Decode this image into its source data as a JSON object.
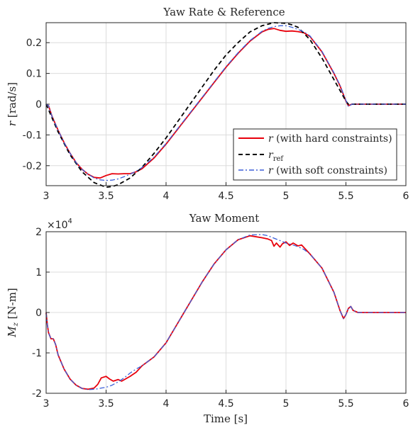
{
  "chart_data": [
    {
      "type": "line",
      "title": "Yaw Rate & Reference",
      "xlabel": "",
      "ylabel": "r [rad/s]",
      "xlim": [
        3,
        6
      ],
      "ylim": [
        -0.265,
        0.265
      ],
      "xticks": [
        "3",
        "3.5",
        "4",
        "4.5",
        "5",
        "5.5",
        "6"
      ],
      "yticks": [
        "-0.2",
        "-0.1",
        "0",
        "0.1",
        "0.2"
      ],
      "grid": true,
      "legend_position": "bottom-right",
      "series": [
        {
          "name": "r (with hard constraints)",
          "color": "#e8000b",
          "style": "solid",
          "x": [
            3.0,
            3.02,
            3.05,
            3.1,
            3.15,
            3.2,
            3.25,
            3.3,
            3.35,
            3.4,
            3.45,
            3.5,
            3.55,
            3.6,
            3.65,
            3.7,
            3.75,
            3.8,
            3.9,
            4.0,
            4.1,
            4.2,
            4.3,
            4.4,
            4.5,
            4.6,
            4.7,
            4.8,
            4.85,
            4.9,
            4.95,
            5.0,
            5.05,
            5.1,
            5.15,
            5.2,
            5.3,
            5.4,
            5.45,
            5.5,
            5.52,
            5.55,
            5.6,
            5.7,
            6.0
          ],
          "y": [
            0.0,
            -0.005,
            -0.04,
            -0.085,
            -0.125,
            -0.16,
            -0.19,
            -0.212,
            -0.228,
            -0.238,
            -0.24,
            -0.232,
            -0.226,
            -0.227,
            -0.226,
            -0.226,
            -0.22,
            -0.21,
            -0.175,
            -0.13,
            -0.08,
            -0.03,
            0.02,
            0.07,
            0.12,
            0.165,
            0.205,
            0.235,
            0.243,
            0.246,
            0.24,
            0.237,
            0.238,
            0.236,
            0.232,
            0.22,
            0.17,
            0.1,
            0.06,
            0.01,
            -0.005,
            0.0,
            0.0,
            0.0,
            0.0
          ]
        },
        {
          "name": "r_ref",
          "color": "#000000",
          "style": "dashed",
          "x": [
            3.0,
            3.05,
            3.1,
            3.2,
            3.3,
            3.4,
            3.5,
            3.55,
            3.6,
            3.7,
            3.8,
            3.9,
            4.0,
            4.1,
            4.2,
            4.3,
            4.4,
            4.5,
            4.6,
            4.7,
            4.8,
            4.9,
            5.0,
            5.05,
            5.1,
            5.2,
            5.3,
            5.4,
            5.5,
            5.52,
            5.6,
            6.0
          ],
          "y": [
            0.0,
            -0.045,
            -0.09,
            -0.165,
            -0.22,
            -0.255,
            -0.27,
            -0.268,
            -0.262,
            -0.24,
            -0.205,
            -0.16,
            -0.11,
            -0.055,
            0.0,
            0.055,
            0.11,
            0.16,
            0.2,
            0.235,
            0.255,
            0.265,
            0.263,
            0.258,
            0.25,
            0.21,
            0.15,
            0.08,
            0.01,
            0.0,
            0.0,
            0.0
          ]
        },
        {
          "name": "r (with soft constraints)",
          "color": "#3b5fd9",
          "style": "dashdot",
          "x": [
            3.0,
            3.02,
            3.05,
            3.1,
            3.15,
            3.2,
            3.25,
            3.3,
            3.35,
            3.4,
            3.45,
            3.5,
            3.55,
            3.6,
            3.65,
            3.7,
            3.75,
            3.8,
            3.9,
            4.0,
            4.1,
            4.2,
            4.3,
            4.4,
            4.5,
            4.6,
            4.7,
            4.8,
            4.85,
            4.9,
            4.95,
            5.0,
            5.05,
            5.1,
            5.15,
            5.2,
            5.3,
            5.4,
            5.45,
            5.5,
            5.52,
            5.55,
            5.6,
            5.7,
            6.0
          ],
          "y": [
            0.0,
            -0.005,
            -0.04,
            -0.085,
            -0.125,
            -0.16,
            -0.19,
            -0.212,
            -0.228,
            -0.24,
            -0.246,
            -0.248,
            -0.247,
            -0.243,
            -0.236,
            -0.228,
            -0.218,
            -0.206,
            -0.172,
            -0.128,
            -0.078,
            -0.028,
            0.022,
            0.072,
            0.122,
            0.167,
            0.207,
            0.237,
            0.246,
            0.252,
            0.255,
            0.255,
            0.25,
            0.243,
            0.235,
            0.222,
            0.172,
            0.102,
            0.062,
            0.012,
            -0.008,
            0.0,
            0.0,
            0.0,
            0.0
          ]
        }
      ]
    },
    {
      "type": "line",
      "title": "Yaw Moment",
      "xlabel": "Time [s]",
      "ylabel": "M_z [N-m]",
      "y_exponent": "×10^4",
      "xlim": [
        3,
        6
      ],
      "ylim": [
        -2,
        2
      ],
      "xticks": [
        "3",
        "3.5",
        "4",
        "4.5",
        "5",
        "5.5",
        "6"
      ],
      "yticks": [
        "-2",
        "-1",
        "0",
        "1",
        "2"
      ],
      "grid": true,
      "series": [
        {
          "name": "",
          "color": "#e8000b",
          "style": "solid",
          "x": [
            3.0,
            3.01,
            3.02,
            3.04,
            3.06,
            3.08,
            3.1,
            3.15,
            3.2,
            3.25,
            3.3,
            3.35,
            3.4,
            3.43,
            3.46,
            3.5,
            3.53,
            3.56,
            3.6,
            3.63,
            3.66,
            3.7,
            3.73,
            3.75,
            3.8,
            3.9,
            4.0,
            4.1,
            4.2,
            4.3,
            4.4,
            4.5,
            4.6,
            4.7,
            4.8,
            4.85,
            4.88,
            4.9,
            4.92,
            4.95,
            4.97,
            5.0,
            5.03,
            5.06,
            5.1,
            5.13,
            5.2,
            5.3,
            5.4,
            5.45,
            5.48,
            5.5,
            5.52,
            5.54,
            5.56,
            5.6,
            5.7,
            6.0
          ],
          "y": [
            0.0,
            -0.3,
            -0.5,
            -0.65,
            -0.65,
            -0.8,
            -1.05,
            -1.4,
            -1.65,
            -1.8,
            -1.88,
            -1.9,
            -1.87,
            -1.78,
            -1.62,
            -1.58,
            -1.65,
            -1.7,
            -1.66,
            -1.7,
            -1.65,
            -1.58,
            -1.52,
            -1.48,
            -1.32,
            -1.1,
            -0.75,
            -0.25,
            0.25,
            0.75,
            1.2,
            1.55,
            1.8,
            1.9,
            1.85,
            1.82,
            1.78,
            1.64,
            1.72,
            1.62,
            1.7,
            1.75,
            1.66,
            1.72,
            1.65,
            1.67,
            1.45,
            1.1,
            0.5,
            0.05,
            -0.15,
            -0.05,
            0.1,
            0.15,
            0.05,
            0.0,
            0.0,
            0.0
          ]
        },
        {
          "name": "",
          "color": "#3b5fd9",
          "style": "dashdot",
          "x": [
            3.0,
            3.01,
            3.02,
            3.04,
            3.06,
            3.08,
            3.1,
            3.15,
            3.2,
            3.25,
            3.3,
            3.35,
            3.4,
            3.43,
            3.46,
            3.5,
            3.55,
            3.6,
            3.65,
            3.7,
            3.75,
            3.8,
            3.9,
            4.0,
            4.1,
            4.2,
            4.3,
            4.4,
            4.5,
            4.6,
            4.7,
            4.8,
            4.85,
            4.9,
            4.95,
            5.0,
            5.05,
            5.1,
            5.15,
            5.2,
            5.3,
            5.4,
            5.45,
            5.48,
            5.5,
            5.52,
            5.54,
            5.56,
            5.6,
            5.7,
            6.0
          ],
          "y": [
            0.0,
            -0.3,
            -0.5,
            -0.65,
            -0.65,
            -0.8,
            -1.05,
            -1.4,
            -1.65,
            -1.8,
            -1.88,
            -1.91,
            -1.9,
            -1.89,
            -1.87,
            -1.85,
            -1.8,
            -1.72,
            -1.62,
            -1.5,
            -1.4,
            -1.32,
            -1.1,
            -0.75,
            -0.25,
            0.25,
            0.75,
            1.2,
            1.55,
            1.8,
            1.92,
            1.93,
            1.9,
            1.84,
            1.78,
            1.72,
            1.68,
            1.63,
            1.56,
            1.45,
            1.1,
            0.5,
            0.05,
            -0.15,
            -0.05,
            0.1,
            0.15,
            0.05,
            0.0,
            0.0,
            0.0
          ]
        }
      ]
    }
  ]
}
